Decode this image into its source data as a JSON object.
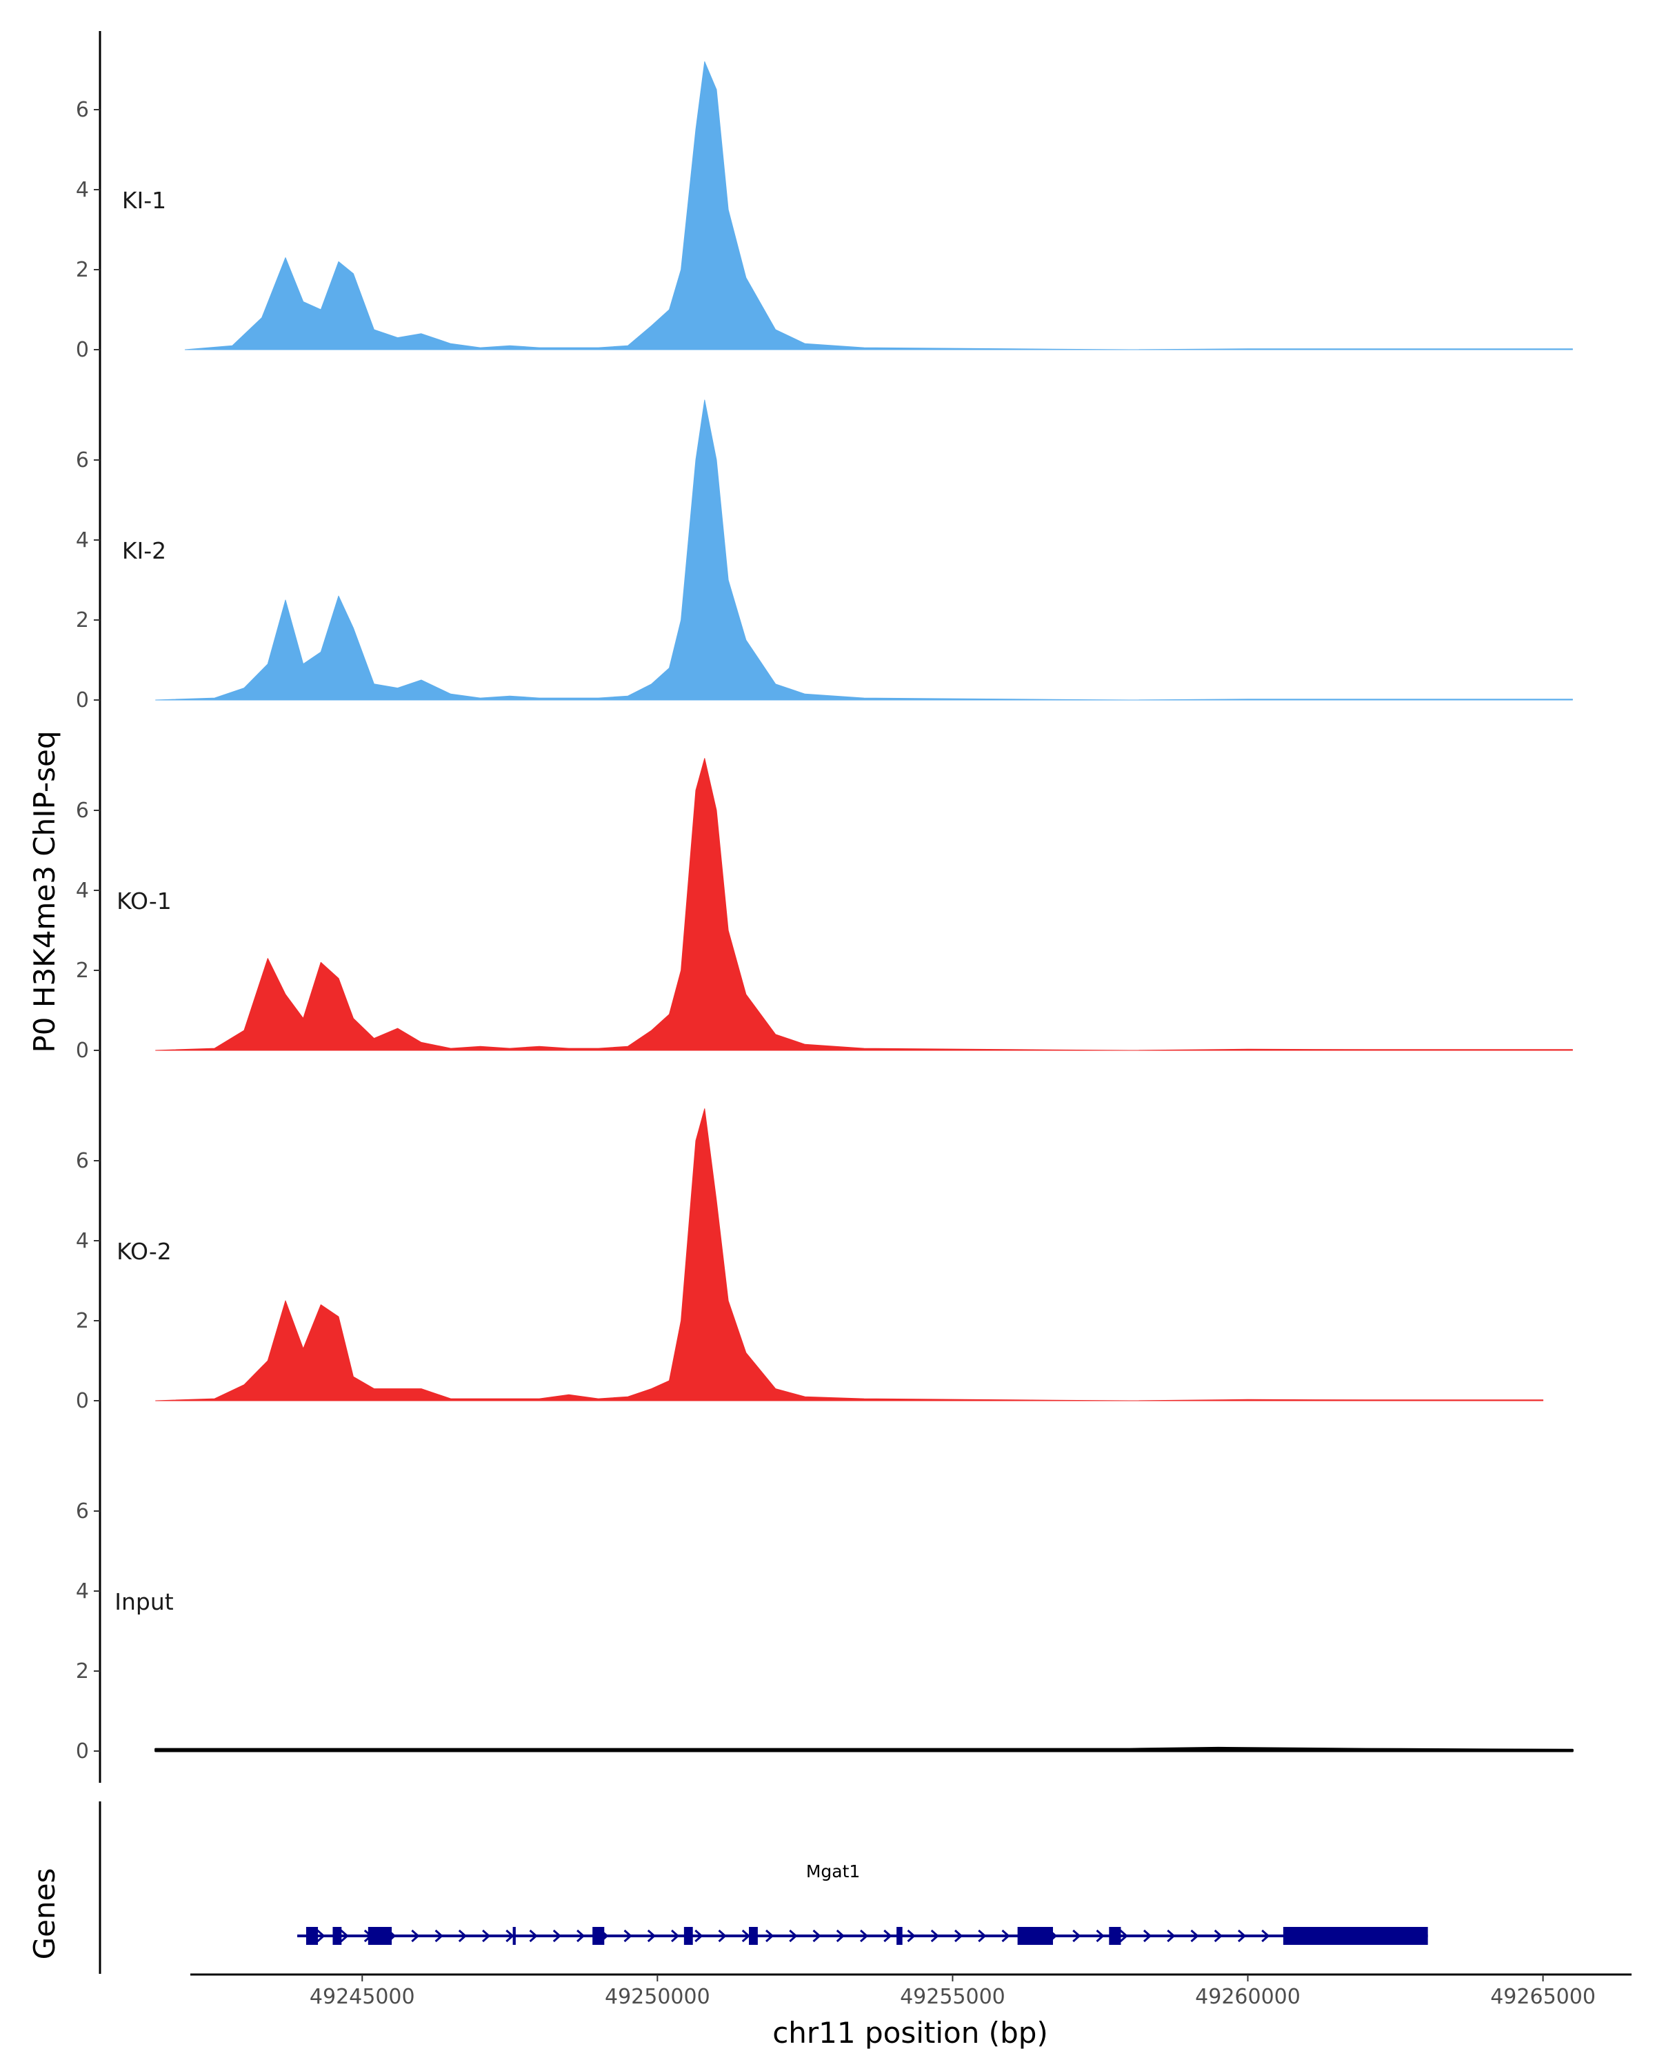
{
  "chart_data": {
    "type": "area",
    "ylabel": "P0 H3K4me3 ChIP-seq",
    "xlabel": "chr11 position (bp)",
    "gene_track_label": "Genes",
    "xlim": [
      49240500,
      49266500
    ],
    "x_ticks": [
      49245000,
      49250000,
      49255000,
      49260000,
      49265000
    ],
    "x_tick_labels": [
      "49245000",
      "49250000",
      "49255000",
      "49260000",
      "49265000"
    ],
    "ylim": [
      0,
      8
    ],
    "y_ticks": [
      0,
      2,
      4,
      6
    ],
    "y_tick_labels": [
      "0",
      "2",
      "4",
      "6"
    ],
    "grid": false,
    "tracks": [
      {
        "name": "KI-1",
        "color": "#5DADEC",
        "x": [
          49242000,
          49242800,
          49243300,
          49243700,
          49244000,
          49244300,
          49244600,
          49244850,
          49245200,
          49245600,
          49246000,
          49246500,
          49247000,
          49247500,
          49248000,
          49248500,
          49249000,
          49249500,
          49249900,
          49250200,
          49250400,
          49250650,
          49250800,
          49251000,
          49251200,
          49251500,
          49252000,
          49252500,
          49253500,
          49256000,
          49258000,
          49260000,
          49262000,
          49264000,
          49265500
        ],
        "values": [
          0,
          0.1,
          0.8,
          2.3,
          1.2,
          1.0,
          2.2,
          1.9,
          0.5,
          0.3,
          0.4,
          0.15,
          0.05,
          0.1,
          0.05,
          0.05,
          0.05,
          0.1,
          0.6,
          1.0,
          2.0,
          5.5,
          7.2,
          6.5,
          3.5,
          1.8,
          0.5,
          0.15,
          0.05,
          0.02,
          0,
          0.02,
          0.02,
          0.02,
          0.02
        ]
      },
      {
        "name": "KI-2",
        "color": "#5DADEC",
        "x": [
          49241500,
          49242500,
          49243000,
          49243400,
          49243700,
          49244000,
          49244300,
          49244600,
          49244850,
          49245200,
          49245600,
          49246000,
          49246500,
          49247000,
          49247500,
          49248000,
          49248500,
          49249000,
          49249500,
          49249900,
          49250200,
          49250400,
          49250650,
          49250800,
          49251000,
          49251200,
          49251500,
          49252000,
          49252500,
          49253500,
          49256000,
          49258000,
          49260000,
          49262000,
          49265500
        ],
        "values": [
          0,
          0.05,
          0.3,
          0.9,
          2.5,
          0.9,
          1.2,
          2.6,
          1.8,
          0.4,
          0.3,
          0.5,
          0.15,
          0.05,
          0.1,
          0.05,
          0.05,
          0.05,
          0.1,
          0.4,
          0.8,
          2.0,
          6.0,
          7.5,
          6.0,
          3.0,
          1.5,
          0.4,
          0.15,
          0.05,
          0.02,
          0,
          0.02,
          0.02,
          0.02
        ]
      },
      {
        "name": "KO-1",
        "color": "#EE2A2A",
        "x": [
          49241500,
          49242500,
          49243000,
          49243400,
          49243700,
          49244000,
          49244300,
          49244600,
          49244850,
          49245200,
          49245600,
          49246000,
          49246500,
          49247000,
          49247500,
          49248000,
          49248500,
          49249000,
          49249500,
          49249900,
          49250200,
          49250400,
          49250650,
          49250800,
          49251000,
          49251200,
          49251500,
          49252000,
          49252500,
          49253500,
          49256000,
          49258000,
          49260000,
          49262000,
          49265500
        ],
        "values": [
          0,
          0.05,
          0.5,
          2.3,
          1.4,
          0.8,
          2.2,
          1.8,
          0.8,
          0.3,
          0.55,
          0.2,
          0.05,
          0.1,
          0.05,
          0.1,
          0.05,
          0.05,
          0.1,
          0.5,
          0.9,
          2.0,
          6.5,
          7.3,
          6.0,
          3.0,
          1.4,
          0.4,
          0.15,
          0.05,
          0.02,
          0,
          0.03,
          0.02,
          0.02
        ]
      },
      {
        "name": "KO-2",
        "color": "#EE2A2A",
        "x": [
          49241500,
          49242500,
          49243000,
          49243400,
          49243700,
          49244000,
          49244300,
          49244600,
          49244850,
          49245200,
          49245600,
          49246000,
          49246500,
          49247000,
          49247500,
          49248000,
          49248500,
          49249000,
          49249500,
          49249900,
          49250200,
          49250400,
          49250650,
          49250800,
          49251000,
          49251200,
          49251500,
          49252000,
          49252500,
          49253500,
          49256000,
          49258000,
          49260000,
          49262000,
          49265000
        ],
        "values": [
          0,
          0.05,
          0.4,
          1.0,
          2.5,
          1.3,
          2.4,
          2.1,
          0.6,
          0.3,
          0.3,
          0.3,
          0.05,
          0.05,
          0.05,
          0.05,
          0.15,
          0.05,
          0.1,
          0.3,
          0.5,
          2.0,
          6.5,
          7.3,
          5.0,
          2.5,
          1.2,
          0.3,
          0.1,
          0.05,
          0.02,
          0,
          0.03,
          0.02,
          0.02
        ]
      },
      {
        "name": "Input",
        "color": "#000000",
        "x": [
          49241500,
          49244000,
          49246000,
          49248000,
          49250000,
          49252000,
          49254000,
          49256000,
          49258000,
          49259500,
          49262000,
          49265500
        ],
        "values": [
          0.05,
          0.05,
          0.05,
          0.05,
          0.05,
          0.05,
          0.05,
          0.05,
          0.05,
          0.08,
          0.05,
          0.03
        ]
      }
    ],
    "gene": {
      "name": "Mgat1",
      "strand": "+",
      "color": "#00008B",
      "start": 49243900,
      "end": 49263050,
      "exons": [
        [
          49244050,
          49244250
        ],
        [
          49244500,
          49244650
        ],
        [
          49245100,
          49245500
        ],
        [
          49247550,
          49247600
        ],
        [
          49248900,
          49249100
        ],
        [
          49250450,
          49250600
        ],
        [
          49251550,
          49251700
        ],
        [
          49254050,
          49254150
        ],
        [
          49256100,
          49256700
        ],
        [
          49257650,
          49257850
        ],
        [
          49260600,
          49263050
        ]
      ]
    }
  }
}
